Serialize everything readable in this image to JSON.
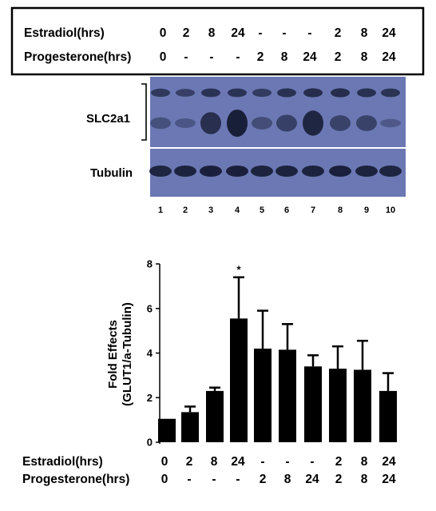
{
  "header_table": {
    "rows": [
      {
        "label": "Estradiol(hrs)",
        "values": [
          "0",
          "2",
          "8",
          "24",
          "-",
          "-",
          "-",
          "2",
          "8",
          "24"
        ]
      },
      {
        "label": "Progesterone(hrs)",
        "values": [
          "0",
          "-",
          "-",
          "-",
          "2",
          "8",
          "24",
          "2",
          "8",
          "24"
        ]
      }
    ]
  },
  "blot": {
    "band_labels": [
      "SLC2a1",
      "Tubulin"
    ],
    "lane_numbers": [
      "1",
      "2",
      "3",
      "4",
      "5",
      "6",
      "7",
      "8",
      "9",
      "10"
    ],
    "colors": {
      "membrane": "#6b78b4",
      "band": "#141a32"
    }
  },
  "chart_data": {
    "type": "bar",
    "categories": [
      "1",
      "2",
      "3",
      "4",
      "5",
      "6",
      "7",
      "8",
      "9",
      "10"
    ],
    "values": [
      1.05,
      1.35,
      2.3,
      5.55,
      4.2,
      4.15,
      3.4,
      3.3,
      3.25,
      2.3
    ],
    "errors": [
      0.0,
      0.25,
      0.15,
      1.85,
      1.7,
      1.15,
      0.5,
      1.0,
      1.3,
      0.8
    ],
    "significance": [
      "",
      "",
      "",
      "*",
      "",
      "",
      "",
      "",
      "",
      ""
    ],
    "ylabel": "Fold Effects",
    "ylabel_sub": "(GLUT1/a-Tubulin)",
    "ylim": [
      0,
      8
    ],
    "yticks": [
      0,
      2,
      4,
      6,
      8
    ],
    "grid": false,
    "bar_color": "#000000",
    "conditions": {
      "rows": [
        {
          "label": "Estradiol(hrs)",
          "values": [
            "0",
            "2",
            "8",
            "24",
            "-",
            "-",
            "-",
            "2",
            "8",
            "24"
          ]
        },
        {
          "label": "Progesterone(hrs)",
          "values": [
            "0",
            "-",
            "-",
            "-",
            "2",
            "8",
            "24",
            "2",
            "8",
            "24"
          ]
        }
      ]
    }
  }
}
